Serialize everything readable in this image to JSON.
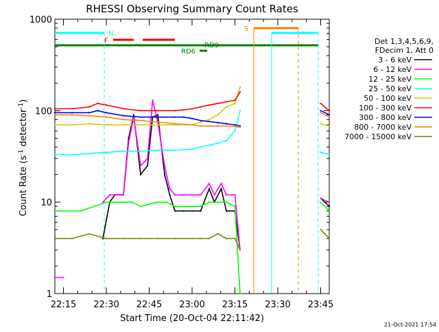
{
  "chart_data": {
    "type": "line",
    "title": "RHESSI Observing Summary Count Rates",
    "xlabel": "Start Time (20-Oct-04 22:11:42)",
    "ylabel": "Count Rate (s⁻¹ detector⁻¹)",
    "ylabel_main": "Count Rate (s",
    "ylabel_sup1": "-1",
    "ylabel_mid": " detector",
    "ylabel_sup2": "-1",
    "ylabel_end": ")",
    "yscale": "log",
    "ylim": [
      1,
      1000
    ],
    "xlim_minutes": [
      22.2,
      23.8
    ],
    "xlim_hours": [
      22.2,
      23.8
    ],
    "x_ticks": [
      {
        "label": "22:15",
        "h": 22.25
      },
      {
        "label": "22:30",
        "h": 22.5
      },
      {
        "label": "22:45",
        "h": 22.75
      },
      {
        "label": "23:00",
        "h": 23.0
      },
      {
        "label": "23:15",
        "h": 23.25
      },
      {
        "label": "23:30",
        "h": 23.5
      },
      {
        "label": "23:45",
        "h": 23.75
      }
    ],
    "y_ticks": [
      {
        "label": "1",
        "v": 1
      },
      {
        "label": "10",
        "v": 10
      },
      {
        "label": "100",
        "v": 100
      },
      {
        "label": "1000",
        "v": 1000
      }
    ],
    "legend_header": [
      "Det 1,3,4,5,6,9,",
      "FDecim 1, Att 0"
    ],
    "series": [
      {
        "name": "3 - 6 keV",
        "color": "#000000",
        "x": [
          22.48,
          22.52,
          22.55,
          22.6,
          22.63,
          22.66,
          22.7,
          22.74,
          22.77,
          22.8,
          22.84,
          22.87,
          22.9,
          22.95,
          23.0,
          23.05,
          23.1,
          23.13,
          23.17,
          23.2,
          23.25,
          23.28,
          23.75,
          23.8
        ],
        "y": [
          4,
          10,
          12,
          12,
          50,
          90,
          20,
          25,
          85,
          90,
          20,
          12,
          8,
          8,
          8,
          8,
          14,
          10,
          14,
          8,
          8,
          3,
          11,
          9
        ]
      },
      {
        "name": "6 - 12 keV",
        "color": "#ff00ff",
        "x": [
          22.2,
          22.25,
          22.48,
          22.52,
          22.55,
          22.6,
          22.63,
          22.66,
          22.7,
          22.74,
          22.77,
          22.8,
          22.84,
          22.87,
          22.9,
          22.95,
          23.0,
          23.05,
          23.1,
          23.13,
          23.17,
          23.2,
          23.25,
          23.28,
          23.75,
          23.8
        ],
        "y": [
          1.5,
          1.5,
          10,
          12,
          12,
          12,
          45,
          85,
          25,
          30,
          130,
          75,
          25,
          14,
          12,
          12,
          12,
          12,
          16,
          12,
          16,
          12,
          12,
          3,
          11,
          10
        ]
      },
      {
        "name": "12 - 25 keV",
        "color": "#00ff00",
        "x": [
          22.2,
          22.35,
          22.5,
          22.55,
          22.6,
          22.65,
          22.7,
          22.8,
          22.85,
          22.9,
          23.0,
          23.05,
          23.1,
          23.15,
          23.2,
          23.25,
          23.28,
          23.75,
          23.8
        ],
        "y": [
          8,
          8,
          10,
          10,
          10,
          10,
          9,
          10,
          10,
          9,
          9,
          9,
          10,
          10,
          10,
          9,
          1,
          10,
          8
        ]
      },
      {
        "name": "25 - 50 keV",
        "color": "#00ffff",
        "x": [
          22.2,
          22.3,
          22.4,
          22.5,
          22.6,
          22.7,
          22.8,
          22.9,
          23.0,
          23.05,
          23.1,
          23.15,
          23.2,
          23.25,
          23.28,
          23.75,
          23.8
        ],
        "y": [
          33,
          33,
          34,
          35,
          36,
          36,
          37,
          37,
          38,
          40,
          42,
          44,
          47,
          60,
          100,
          35,
          33
        ]
      },
      {
        "name": "50 - 100 keV",
        "color": "#cccc00",
        "x": [
          22.2,
          22.3,
          22.4,
          22.5,
          22.6,
          22.7,
          22.8,
          22.9,
          23.0,
          23.05,
          23.1,
          23.15,
          23.2,
          23.25,
          23.28,
          23.75,
          23.8
        ],
        "y": [
          70,
          70,
          72,
          70,
          70,
          70,
          70,
          70,
          70,
          75,
          80,
          90,
          110,
          120,
          180,
          72,
          68
        ]
      },
      {
        "name": "100 - 300 keV",
        "color": "#ff0000",
        "x": [
          22.2,
          22.3,
          22.4,
          22.45,
          22.5,
          22.6,
          22.7,
          22.8,
          22.9,
          22.95,
          23.0,
          23.05,
          23.1,
          23.15,
          23.2,
          23.25,
          23.28,
          23.75,
          23.8
        ],
        "y": [
          105,
          105,
          110,
          120,
          115,
          105,
          100,
          100,
          100,
          102,
          105,
          110,
          115,
          120,
          125,
          130,
          160,
          120,
          100
        ]
      },
      {
        "name": "300 - 800 keV",
        "color": "#0000ff",
        "x": [
          22.2,
          22.3,
          22.4,
          22.45,
          22.5,
          22.6,
          22.7,
          22.8,
          22.9,
          22.95,
          23.0,
          23.05,
          23.1,
          23.15,
          23.2,
          23.25,
          23.28,
          23.75,
          23.8
        ],
        "y": [
          95,
          95,
          95,
          100,
          95,
          88,
          85,
          85,
          85,
          85,
          82,
          78,
          76,
          74,
          72,
          70,
          68,
          100,
          90
        ]
      },
      {
        "name": "800 - 7000 keV",
        "color": "#ff8000",
        "x": [
          22.2,
          22.3,
          22.4,
          22.5,
          22.6,
          22.7,
          22.8,
          22.9,
          23.0,
          23.05,
          23.1,
          23.15,
          23.2,
          23.25,
          23.28,
          23.75,
          23.8
        ],
        "y": [
          90,
          90,
          88,
          85,
          80,
          78,
          75,
          72,
          70,
          68,
          68,
          68,
          68,
          67,
          66,
          95,
          85
        ]
      },
      {
        "name": "7000 - 15000 keV",
        "color": "#808000",
        "x": [
          22.2,
          22.3,
          22.4,
          22.5,
          22.6,
          22.7,
          22.8,
          22.9,
          23.0,
          23.05,
          23.1,
          23.15,
          23.2,
          23.25,
          23.28,
          23.75,
          23.8
        ],
        "y": [
          4,
          4,
          4.5,
          4,
          4,
          4,
          4,
          4,
          4,
          4,
          4,
          4.5,
          4,
          4,
          3,
          5,
          4
        ]
      }
    ],
    "flags": [
      {
        "label": "N",
        "color": "#00ffff"
      },
      {
        "label": "F",
        "color": "#ff0000"
      },
      {
        "label": "S",
        "color": "#ff8000"
      },
      {
        "label": "RD6",
        "color": "#008000"
      },
      {
        "label": "RD9",
        "color": "#008000"
      }
    ],
    "footer_date": "21-Oct-2021 17:54"
  }
}
